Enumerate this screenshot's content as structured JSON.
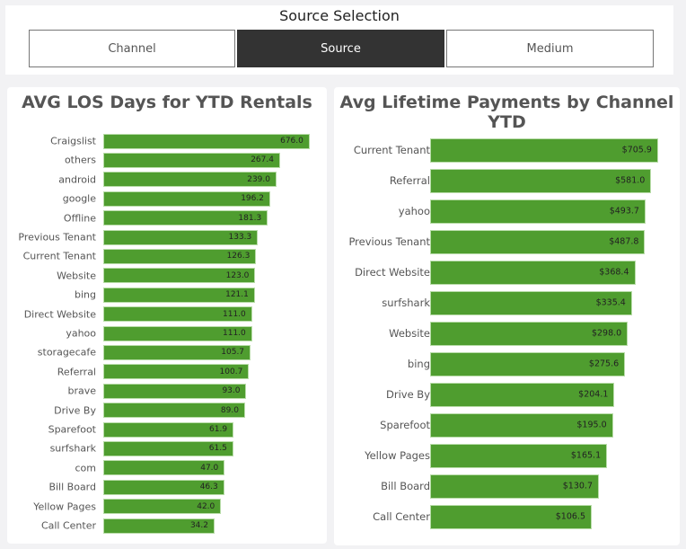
{
  "slicer": {
    "title": "Source Selection",
    "options": [
      "Channel",
      "Source",
      "Medium"
    ],
    "selected": "Source"
  },
  "chart_data": [
    {
      "type": "bar",
      "orientation": "horizontal",
      "title": "AVG LOS Days for YTD Rentals",
      "x_scale": "log",
      "bar_color": "#4f9d2f",
      "categories": [
        "Craigslist",
        "others",
        "android",
        "google",
        "Offline",
        "Previous Tenant",
        "Current Tenant",
        "Website",
        "bing",
        "Direct Website",
        "yahoo",
        "storagecafe",
        "Referral",
        "brave",
        "Drive By",
        "Sparefoot",
        "surfshark",
        "com",
        "Bill Board",
        "Yellow Pages",
        "Call Center"
      ],
      "values": [
        676.0,
        267.4,
        239.0,
        196.2,
        181.3,
        133.3,
        126.3,
        123.0,
        121.1,
        111.0,
        111.0,
        105.7,
        100.7,
        93.0,
        89.0,
        61.9,
        61.5,
        47.0,
        46.3,
        42.0,
        34.2
      ],
      "labels": [
        "676.0",
        "267.4",
        "239.0",
        "196.2",
        "181.3",
        "133.3",
        "126.3",
        "123.0",
        "121.1",
        "111.0",
        "111.0",
        "105.7",
        "100.7",
        "93.0",
        "89.0",
        "61.9",
        "61.5",
        "47.0",
        "46.3",
        "42.0",
        "34.2"
      ]
    },
    {
      "type": "bar",
      "orientation": "horizontal",
      "title": "Avg Lifetime Payments by Channel YTD",
      "x_scale": "log",
      "bar_color": "#4f9d2f",
      "categories": [
        "Current Tenant",
        "Referral",
        "yahoo",
        "Previous Tenant",
        "Direct Website",
        "surfshark",
        "Website",
        "bing",
        "Drive By",
        "Sparefoot",
        "Yellow Pages",
        "Bill Board",
        "Call Center"
      ],
      "values": [
        705.9,
        581.0,
        493.7,
        487.8,
        368.4,
        335.4,
        298.0,
        275.6,
        204.1,
        195.0,
        165.1,
        130.7,
        106.5
      ],
      "labels": [
        "$705.9",
        "$581.0",
        "$493.7",
        "$487.8",
        "$368.4",
        "$335.4",
        "$298.0",
        "$275.6",
        "$204.1",
        "$195.0",
        "$165.1",
        "$130.7",
        "$106.5"
      ]
    }
  ]
}
